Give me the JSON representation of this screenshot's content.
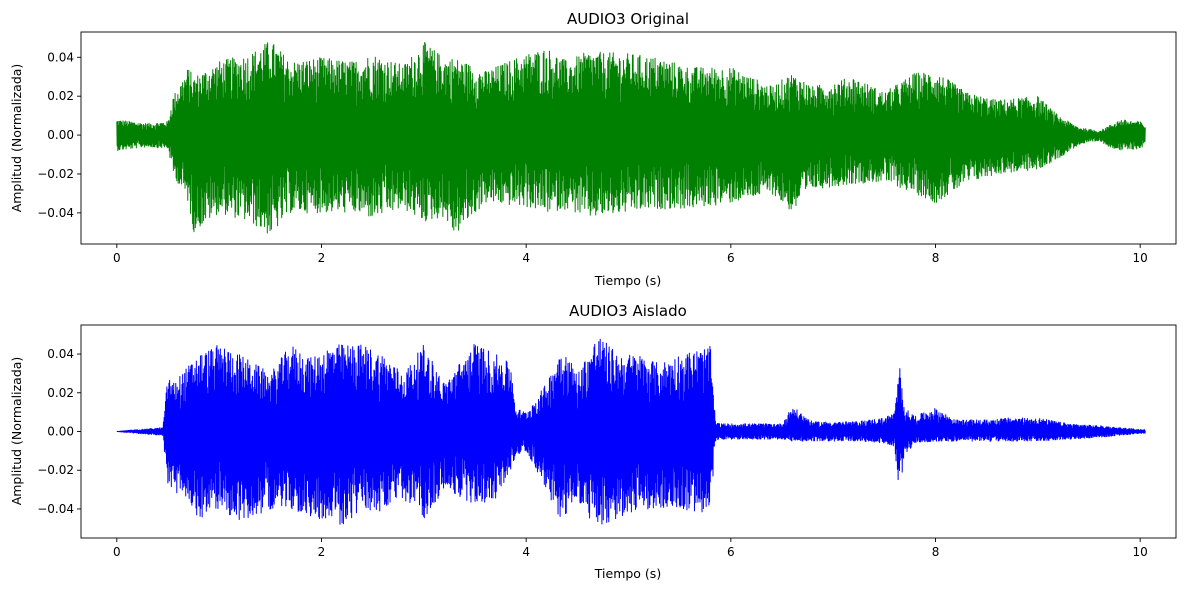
{
  "chart_data": [
    {
      "type": "line",
      "title": "AUDIO3 Original",
      "xlabel": "Tiempo (s)",
      "ylabel": "Amplitud (Normalizada)",
      "xlim": [
        -0.35,
        10.35
      ],
      "ylim": [
        -0.056,
        0.053
      ],
      "xticks": [
        0,
        2,
        4,
        6,
        8,
        10
      ],
      "xtick_labels": [
        "0",
        "2",
        "4",
        "6",
        "8",
        "10"
      ],
      "yticks": [
        0.04,
        0.02,
        0.0,
        -0.02,
        -0.04
      ],
      "ytick_labels": [
        "0.04",
        "0.02",
        "0.00",
        "−0.02",
        "−0.04"
      ],
      "grid": false,
      "series": [
        {
          "color": "#008000",
          "envelope_time_s": [
            0,
            0.3,
            0.5,
            0.55,
            0.7,
            0.75,
            1.0,
            1.3,
            1.5,
            1.7,
            2.0,
            2.3,
            2.5,
            2.8,
            3.0,
            3.2,
            3.3,
            3.6,
            4.0,
            4.2,
            4.4,
            4.6,
            5.0,
            5.3,
            5.6,
            6.0,
            6.4,
            6.6,
            6.8,
            7.2,
            7.5,
            7.8,
            8.0,
            8.3,
            8.6,
            9.0,
            9.2,
            9.4,
            9.6,
            9.7,
            9.8,
            10.0,
            10.05
          ],
          "envelope_upper": [
            0.008,
            0.006,
            0.007,
            0.02,
            0.035,
            0.03,
            0.038,
            0.042,
            0.049,
            0.038,
            0.04,
            0.038,
            0.042,
            0.036,
            0.048,
            0.04,
            0.04,
            0.033,
            0.042,
            0.045,
            0.038,
            0.043,
            0.042,
            0.04,
            0.035,
            0.035,
            0.025,
            0.032,
            0.025,
            0.03,
            0.022,
            0.032,
            0.033,
            0.022,
            0.018,
            0.02,
            0.01,
            0.004,
            0.002,
            0.005,
            0.008,
            0.007,
            0.005
          ],
          "envelope_lower": [
            -0.008,
            -0.006,
            -0.007,
            -0.02,
            -0.035,
            -0.05,
            -0.04,
            -0.045,
            -0.052,
            -0.04,
            -0.04,
            -0.04,
            -0.043,
            -0.038,
            -0.045,
            -0.042,
            -0.052,
            -0.035,
            -0.037,
            -0.04,
            -0.038,
            -0.043,
            -0.04,
            -0.038,
            -0.038,
            -0.035,
            -0.03,
            -0.04,
            -0.028,
            -0.025,
            -0.024,
            -0.03,
            -0.035,
            -0.025,
            -0.02,
            -0.018,
            -0.012,
            -0.005,
            -0.003,
            -0.006,
            -0.008,
            -0.007,
            -0.005
          ]
        }
      ]
    },
    {
      "type": "line",
      "title": "AUDIO3 Aislado",
      "xlabel": "Tiempo (s)",
      "ylabel": "Amplitud (Normalizada)",
      "xlim": [
        -0.35,
        10.35
      ],
      "ylim": [
        -0.055,
        0.055
      ],
      "xticks": [
        0,
        2,
        4,
        6,
        8,
        10
      ],
      "xtick_labels": [
        "0",
        "2",
        "4",
        "6",
        "8",
        "10"
      ],
      "yticks": [
        0.04,
        0.02,
        0.0,
        -0.02,
        -0.04
      ],
      "ytick_labels": [
        "0.04",
        "0.02",
        "0.00",
        "−0.02",
        "−0.04"
      ],
      "grid": false,
      "series": [
        {
          "color": "#0000ff",
          "envelope_time_s": [
            0,
            0.2,
            0.45,
            0.5,
            0.55,
            0.8,
            1.0,
            1.2,
            1.5,
            1.7,
            1.9,
            2.1,
            2.2,
            2.4,
            2.6,
            2.8,
            3.0,
            3.2,
            3.5,
            3.7,
            3.85,
            3.9,
            4.0,
            4.2,
            4.35,
            4.5,
            4.7,
            4.9,
            5.1,
            5.3,
            5.5,
            5.8,
            5.85,
            5.9,
            6.0,
            6.5,
            6.6,
            6.8,
            7.2,
            7.5,
            7.6,
            7.65,
            7.7,
            7.8,
            8.0,
            8.2,
            8.5,
            8.7,
            9.0,
            9.3,
            9.6,
            10.0,
            10.05
          ],
          "envelope_upper": [
            0.0,
            0.001,
            0.002,
            0.03,
            0.025,
            0.04,
            0.045,
            0.04,
            0.03,
            0.045,
            0.038,
            0.045,
            0.045,
            0.045,
            0.04,
            0.03,
            0.045,
            0.025,
            0.046,
            0.04,
            0.035,
            0.012,
            0.01,
            0.025,
            0.045,
            0.03,
            0.05,
            0.04,
            0.04,
            0.035,
            0.04,
            0.044,
            0.005,
            0.004,
            0.004,
            0.004,
            0.013,
            0.005,
            0.005,
            0.007,
            0.01,
            0.034,
            0.012,
            0.008,
            0.012,
            0.006,
            0.006,
            0.007,
            0.007,
            0.004,
            0.003,
            0.001,
            0.001
          ],
          "envelope_lower": [
            0.0,
            -0.001,
            -0.002,
            -0.03,
            -0.03,
            -0.045,
            -0.04,
            -0.047,
            -0.04,
            -0.04,
            -0.045,
            -0.045,
            -0.05,
            -0.04,
            -0.042,
            -0.035,
            -0.045,
            -0.03,
            -0.038,
            -0.035,
            -0.02,
            -0.012,
            -0.01,
            -0.03,
            -0.048,
            -0.035,
            -0.052,
            -0.045,
            -0.04,
            -0.04,
            -0.04,
            -0.044,
            -0.005,
            -0.004,
            -0.004,
            -0.004,
            -0.005,
            -0.005,
            -0.005,
            -0.006,
            -0.008,
            -0.033,
            -0.012,
            -0.006,
            -0.005,
            -0.005,
            -0.005,
            -0.005,
            -0.005,
            -0.004,
            -0.003,
            -0.001,
            -0.001
          ]
        }
      ]
    }
  ]
}
